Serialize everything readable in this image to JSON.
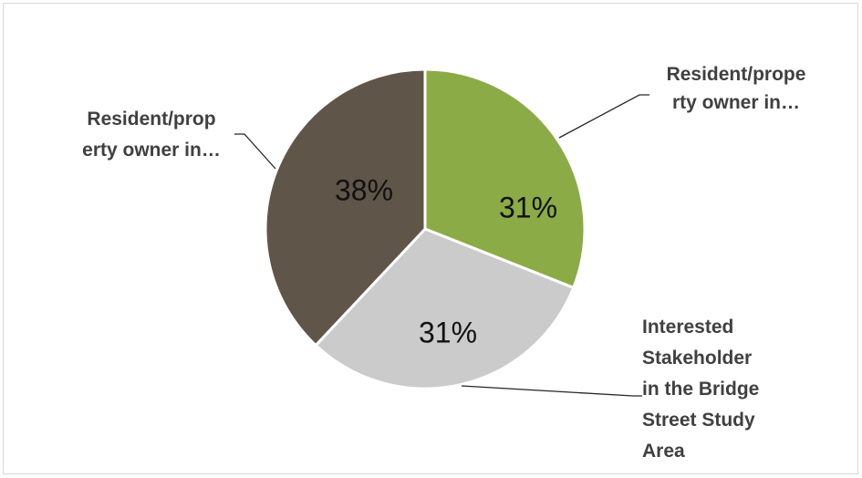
{
  "chart_data": {
    "type": "pie",
    "title": "",
    "legend": "none",
    "slices": [
      {
        "label": "Resident/property owner in…",
        "label_lines": [
          "Resident/prope",
          "rty owner in…"
        ],
        "value": 31,
        "display": "31%",
        "color": "#8bab46"
      },
      {
        "label": "Interested Stakeholder in the Bridge Street Study Area",
        "label_lines": [
          "Interested",
          "Stakeholder",
          "in the Bridge",
          "Street Study",
          "Area"
        ],
        "value": 31,
        "display": "31%",
        "color": "#cbcbcb"
      },
      {
        "label": "Resident/property owner in…",
        "label_lines": [
          "Resident/prop",
          "erty owner in…"
        ],
        "value": 38,
        "display": "38%",
        "color": "#5f5549"
      }
    ]
  }
}
